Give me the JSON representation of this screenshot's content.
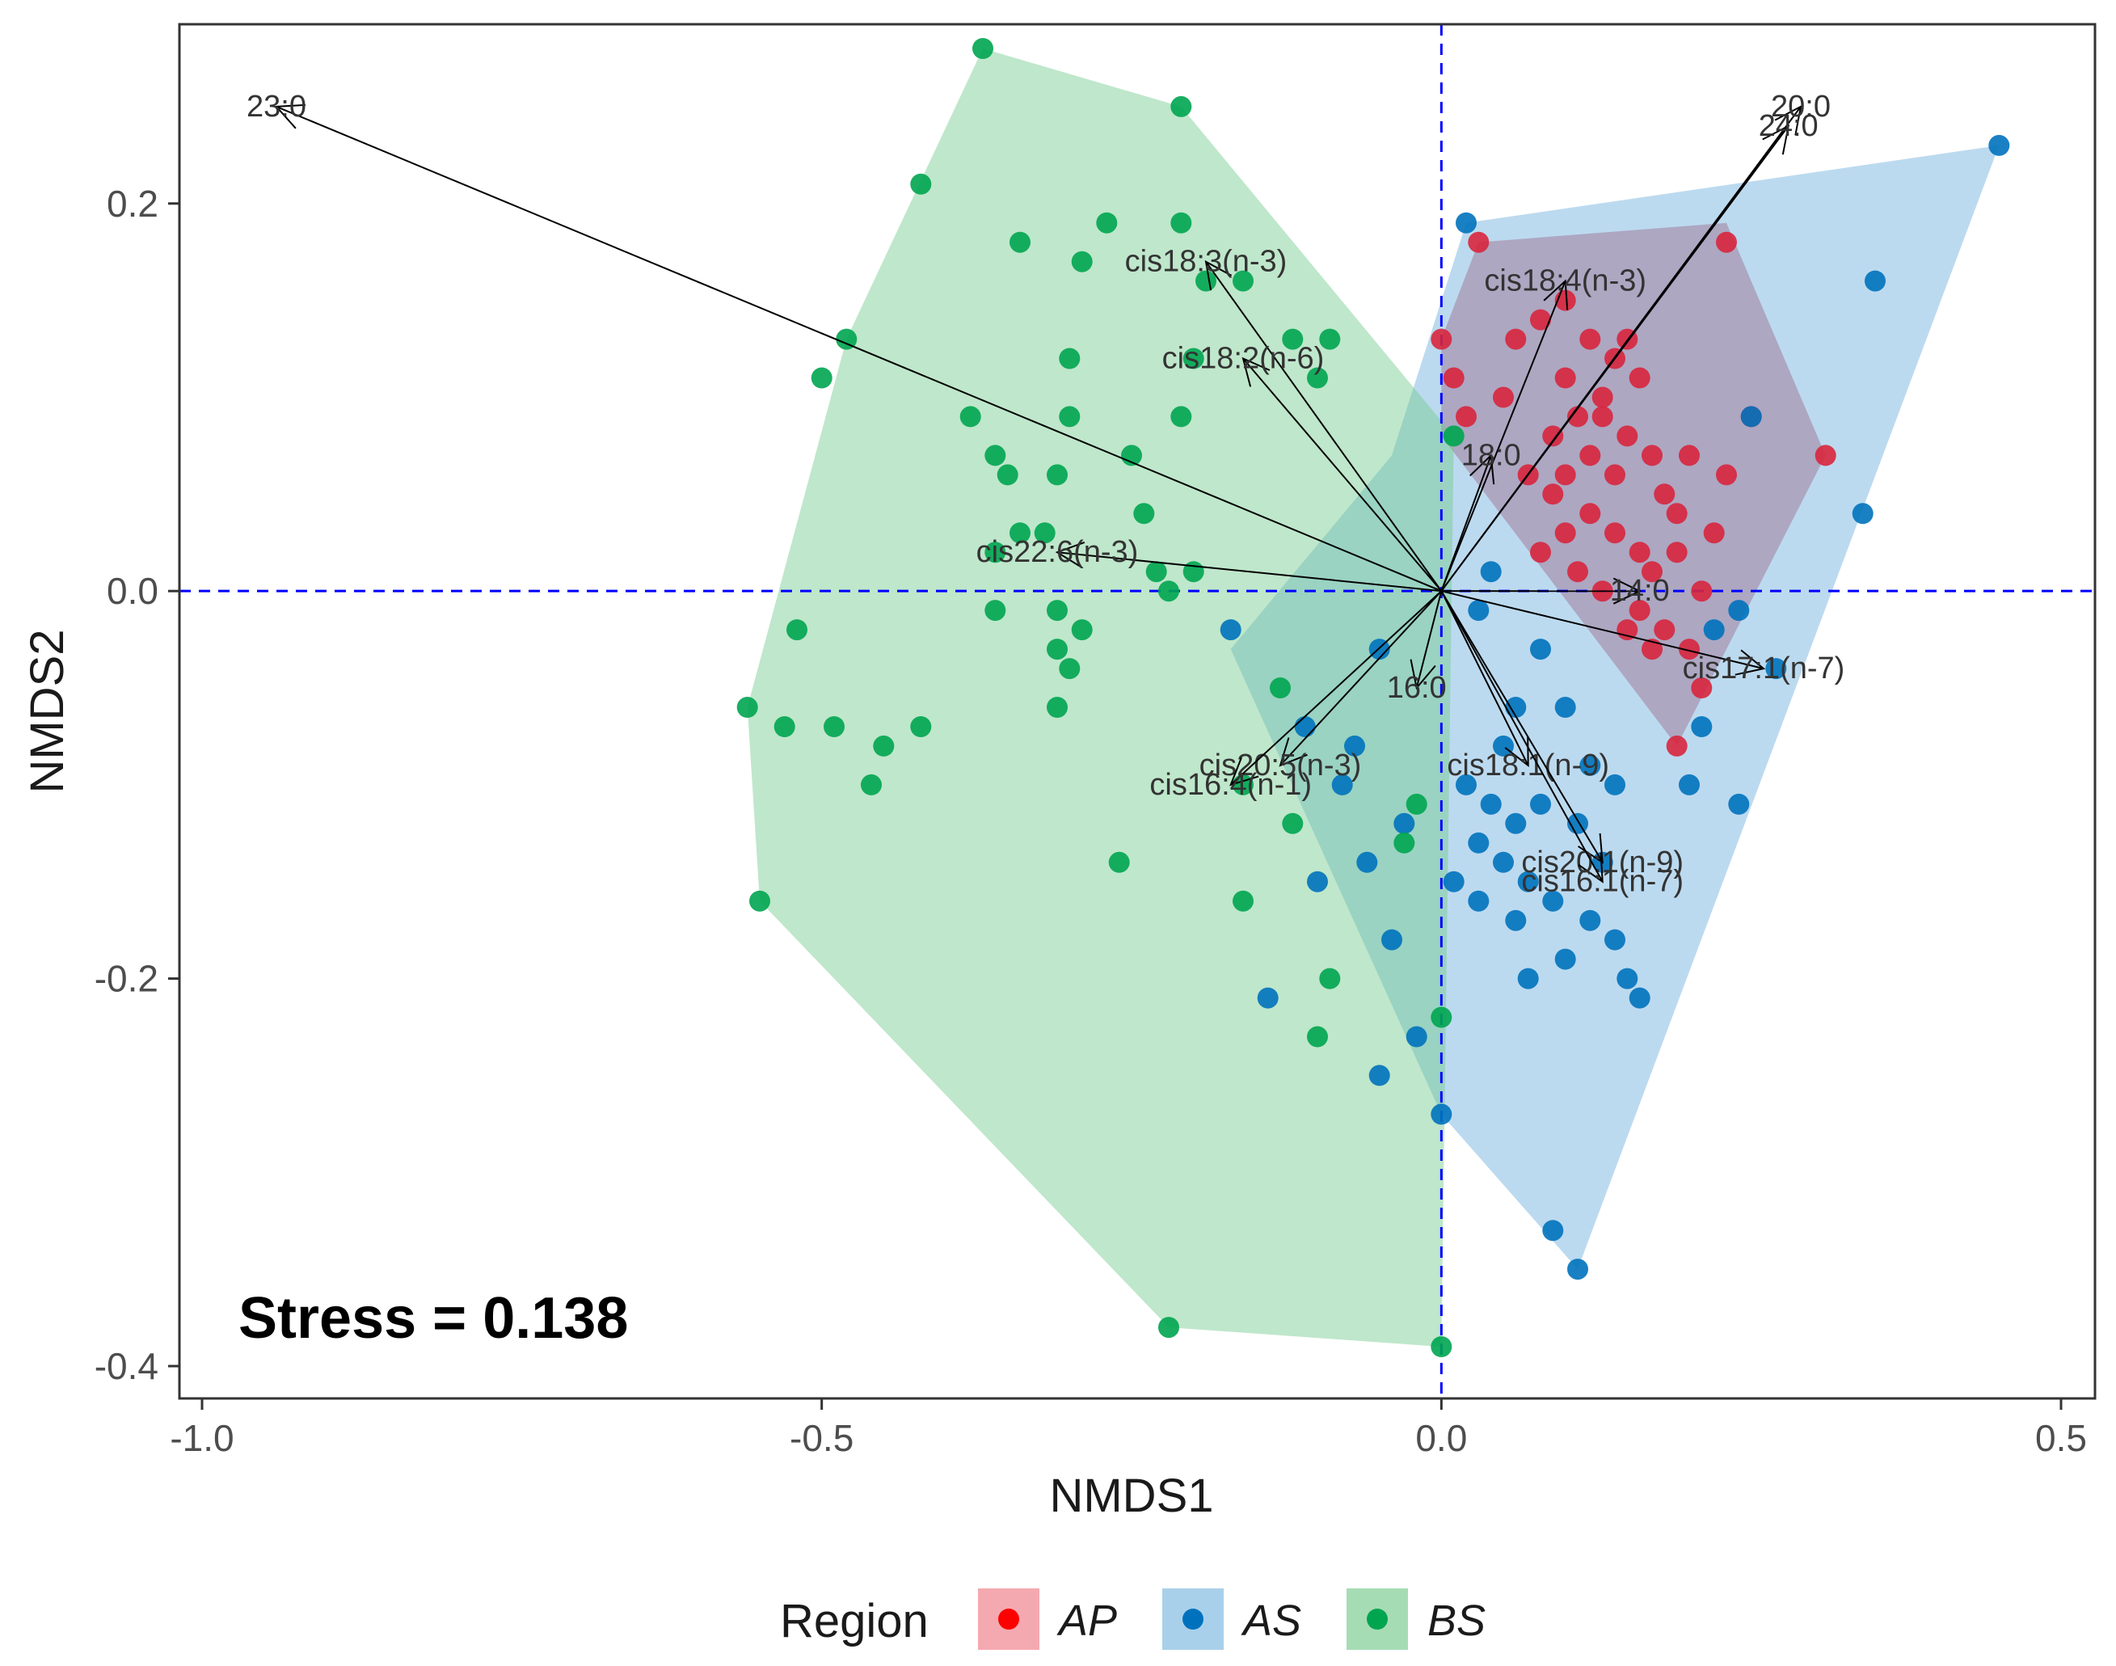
{
  "chart_data": {
    "type": "scatter",
    "xlabel": "NMDS1",
    "ylabel": "NMDS2",
    "xlim": [
      -1.0,
      0.5
    ],
    "ylim": [
      -0.4,
      0.28
    ],
    "x_ticks": [
      "-1.0",
      "-0.5",
      "0.0",
      "0.5"
    ],
    "x_tick_values": [
      -1.0,
      -0.5,
      0.0,
      0.5
    ],
    "y_ticks": [
      "0.2",
      "0.0",
      "-0.2",
      "-0.4"
    ],
    "y_tick_values": [
      0.2,
      0.0,
      -0.2,
      -0.4
    ],
    "reference_lines": {
      "x": 0,
      "y": 0,
      "color": "#0000ff",
      "style": "dashed"
    },
    "stress_label": "Stress = 0.138",
    "legend": {
      "title": "Region",
      "position": "bottom",
      "entries": [
        {
          "label": "AP",
          "color": "#ff0000",
          "fill": "#f4a9b0"
        },
        {
          "label": "AS",
          "color": "#0072bd",
          "fill": "#a9d0ea"
        },
        {
          "label": "BS",
          "color": "#00a550",
          "fill": "#a6dcb4"
        }
      ]
    },
    "series": [
      {
        "name": "AP",
        "color": "#d7263d",
        "hull_color": "#c0304a",
        "hull": [
          [
            0.0,
            0.13
          ],
          [
            0.03,
            0.18
          ],
          [
            0.23,
            0.19
          ],
          [
            0.31,
            0.07
          ],
          [
            0.19,
            -0.08
          ],
          [
            0.0,
            0.08
          ]
        ],
        "points": [
          [
            0.03,
            0.18
          ],
          [
            0.23,
            0.18
          ],
          [
            0.31,
            0.07
          ],
          [
            0.19,
            -0.08
          ],
          [
            0.0,
            0.13
          ],
          [
            0.01,
            0.11
          ],
          [
            0.02,
            0.09
          ],
          [
            0.06,
            0.13
          ],
          [
            0.08,
            0.14
          ],
          [
            0.1,
            0.15
          ],
          [
            0.12,
            0.13
          ],
          [
            0.14,
            0.12
          ],
          [
            0.16,
            0.11
          ],
          [
            0.13,
            0.1
          ],
          [
            0.11,
            0.09
          ],
          [
            0.09,
            0.08
          ],
          [
            0.07,
            0.06
          ],
          [
            0.1,
            0.06
          ],
          [
            0.12,
            0.07
          ],
          [
            0.15,
            0.08
          ],
          [
            0.17,
            0.07
          ],
          [
            0.2,
            0.07
          ],
          [
            0.23,
            0.06
          ],
          [
            0.22,
            0.03
          ],
          [
            0.19,
            0.02
          ],
          [
            0.16,
            0.02
          ],
          [
            0.14,
            0.03
          ],
          [
            0.12,
            0.04
          ],
          [
            0.1,
            0.03
          ],
          [
            0.08,
            0.02
          ],
          [
            0.13,
            0.0
          ],
          [
            0.16,
            -0.01
          ],
          [
            0.18,
            -0.02
          ],
          [
            0.2,
            -0.03
          ],
          [
            0.17,
            -0.03
          ],
          [
            0.15,
            -0.02
          ],
          [
            0.21,
            0.0
          ],
          [
            0.11,
            0.01
          ],
          [
            0.09,
            0.05
          ],
          [
            0.18,
            0.05
          ],
          [
            0.14,
            0.06
          ],
          [
            0.1,
            0.11
          ],
          [
            0.15,
            0.13
          ],
          [
            0.17,
            0.01
          ],
          [
            0.19,
            0.04
          ],
          [
            0.21,
            -0.05
          ],
          [
            0.25,
            0.09
          ],
          [
            0.05,
            0.1
          ],
          [
            0.13,
            0.09
          ]
        ]
      },
      {
        "name": "AS",
        "color": "#0072bd",
        "hull_color": "#6aaedb",
        "hull": [
          [
            0.02,
            0.19
          ],
          [
            0.45,
            0.23
          ],
          [
            0.11,
            -0.35
          ],
          [
            0.0,
            -0.27
          ],
          [
            -0.17,
            -0.03
          ],
          [
            -0.04,
            0.07
          ]
        ],
        "points": [
          [
            0.02,
            0.19
          ],
          [
            0.45,
            0.23
          ],
          [
            0.35,
            0.16
          ],
          [
            0.34,
            0.04
          ],
          [
            0.25,
            0.09
          ],
          [
            0.11,
            -0.35
          ],
          [
            0.09,
            -0.33
          ],
          [
            0.0,
            -0.27
          ],
          [
            -0.17,
            -0.02
          ],
          [
            -0.05,
            -0.03
          ],
          [
            0.03,
            -0.01
          ],
          [
            0.04,
            0.01
          ],
          [
            0.08,
            -0.03
          ],
          [
            0.06,
            -0.06
          ],
          [
            0.05,
            -0.08
          ],
          [
            0.1,
            -0.06
          ],
          [
            0.12,
            -0.09
          ],
          [
            0.14,
            -0.1
          ],
          [
            0.02,
            -0.1
          ],
          [
            0.04,
            -0.11
          ],
          [
            0.06,
            -0.12
          ],
          [
            0.08,
            -0.11
          ],
          [
            0.11,
            -0.12
          ],
          [
            0.13,
            -0.14
          ],
          [
            0.03,
            -0.13
          ],
          [
            0.05,
            -0.14
          ],
          [
            0.07,
            -0.15
          ],
          [
            0.09,
            -0.16
          ],
          [
            0.12,
            -0.17
          ],
          [
            0.14,
            -0.18
          ],
          [
            0.01,
            -0.15
          ],
          [
            0.03,
            -0.16
          ],
          [
            0.06,
            -0.17
          ],
          [
            0.1,
            -0.19
          ],
          [
            0.07,
            -0.2
          ],
          [
            0.15,
            -0.2
          ],
          [
            0.16,
            -0.21
          ],
          [
            -0.06,
            -0.14
          ],
          [
            -0.1,
            -0.15
          ],
          [
            -0.04,
            -0.18
          ],
          [
            -0.02,
            -0.23
          ],
          [
            -0.05,
            -0.25
          ],
          [
            -0.14,
            -0.21
          ],
          [
            -0.08,
            -0.1
          ],
          [
            -0.03,
            -0.12
          ],
          [
            -0.07,
            -0.08
          ],
          [
            -0.11,
            -0.07
          ],
          [
            0.27,
            -0.04
          ],
          [
            0.24,
            -0.11
          ],
          [
            0.21,
            -0.07
          ],
          [
            0.2,
            -0.1
          ],
          [
            0.22,
            -0.02
          ],
          [
            0.24,
            -0.01
          ]
        ]
      },
      {
        "name": "BS",
        "color": "#00a550",
        "hull_color": "#71c98c",
        "hull": [
          [
            -0.37,
            0.28
          ],
          [
            -0.21,
            0.25
          ],
          [
            0.01,
            0.08
          ],
          [
            0.0,
            -0.39
          ],
          [
            -0.22,
            -0.38
          ],
          [
            -0.55,
            -0.16
          ],
          [
            -0.56,
            -0.06
          ],
          [
            -0.48,
            0.13
          ]
        ],
        "points": [
          [
            -0.37,
            0.28
          ],
          [
            -0.21,
            0.25
          ],
          [
            0.01,
            0.08
          ],
          [
            0.0,
            -0.39
          ],
          [
            -0.22,
            -0.38
          ],
          [
            -0.55,
            -0.16
          ],
          [
            -0.56,
            -0.06
          ],
          [
            -0.48,
            0.13
          ],
          [
            -0.42,
            0.21
          ],
          [
            -0.34,
            0.18
          ],
          [
            -0.27,
            0.19
          ],
          [
            -0.21,
            0.19
          ],
          [
            -0.29,
            0.17
          ],
          [
            -0.19,
            0.16
          ],
          [
            -0.16,
            0.16
          ],
          [
            -0.09,
            0.13
          ],
          [
            -0.12,
            0.13
          ],
          [
            -0.3,
            0.12
          ],
          [
            -0.2,
            0.12
          ],
          [
            -0.1,
            0.11
          ],
          [
            -0.5,
            0.11
          ],
          [
            -0.38,
            0.09
          ],
          [
            -0.21,
            0.09
          ],
          [
            -0.3,
            0.09
          ],
          [
            -0.36,
            0.07
          ],
          [
            -0.35,
            0.06
          ],
          [
            -0.25,
            0.07
          ],
          [
            -0.31,
            0.06
          ],
          [
            -0.24,
            0.04
          ],
          [
            -0.36,
            0.02
          ],
          [
            -0.34,
            0.03
          ],
          [
            -0.32,
            0.03
          ],
          [
            -0.23,
            0.01
          ],
          [
            -0.2,
            0.01
          ],
          [
            -0.31,
            -0.01
          ],
          [
            -0.29,
            -0.02
          ],
          [
            -0.36,
            -0.01
          ],
          [
            -0.52,
            -0.02
          ],
          [
            -0.31,
            -0.03
          ],
          [
            -0.3,
            -0.04
          ],
          [
            -0.22,
            0.0
          ],
          [
            -0.13,
            -0.05
          ],
          [
            -0.31,
            -0.06
          ],
          [
            -0.49,
            -0.07
          ],
          [
            -0.53,
            -0.07
          ],
          [
            -0.45,
            -0.08
          ],
          [
            -0.42,
            -0.07
          ],
          [
            -0.46,
            -0.1
          ],
          [
            -0.26,
            -0.14
          ],
          [
            -0.16,
            -0.1
          ],
          [
            -0.12,
            -0.12
          ],
          [
            -0.16,
            -0.16
          ],
          [
            -0.09,
            -0.2
          ],
          [
            -0.1,
            -0.23
          ],
          [
            -0.02,
            -0.11
          ],
          [
            -0.03,
            -0.13
          ],
          [
            0.0,
            -0.22
          ]
        ]
      }
    ],
    "vectors": [
      {
        "label": "23:0",
        "x": -0.94,
        "y": 0.25
      },
      {
        "label": "20:0",
        "x": 0.29,
        "y": 0.25
      },
      {
        "label": "24:0",
        "x": 0.28,
        "y": 0.24
      },
      {
        "label": "cis18:3(n-3)",
        "x": -0.19,
        "y": 0.17
      },
      {
        "label": "cis18:4(n-3)",
        "x": 0.1,
        "y": 0.16
      },
      {
        "label": "cis18:2(n-6)",
        "x": -0.16,
        "y": 0.12
      },
      {
        "label": "18:0",
        "x": 0.04,
        "y": 0.07
      },
      {
        "label": "cis22:6(n-3)",
        "x": -0.31,
        "y": 0.02
      },
      {
        "label": "14:0",
        "x": 0.16,
        "y": 0.0
      },
      {
        "label": "cis17:1(n-7)",
        "x": 0.26,
        "y": -0.04
      },
      {
        "label": "16:0",
        "x": -0.02,
        "y": -0.05
      },
      {
        "label": "cis20:5(n-3)",
        "x": -0.13,
        "y": -0.09
      },
      {
        "label": "cis16:4(n-1)",
        "x": -0.17,
        "y": -0.1
      },
      {
        "label": "cis18:1(n-9)",
        "x": 0.07,
        "y": -0.09
      },
      {
        "label": "cis20:1(n-9)",
        "x": 0.13,
        "y": -0.14
      },
      {
        "label": "cis16:1(n-7)",
        "x": 0.13,
        "y": -0.15
      }
    ]
  }
}
